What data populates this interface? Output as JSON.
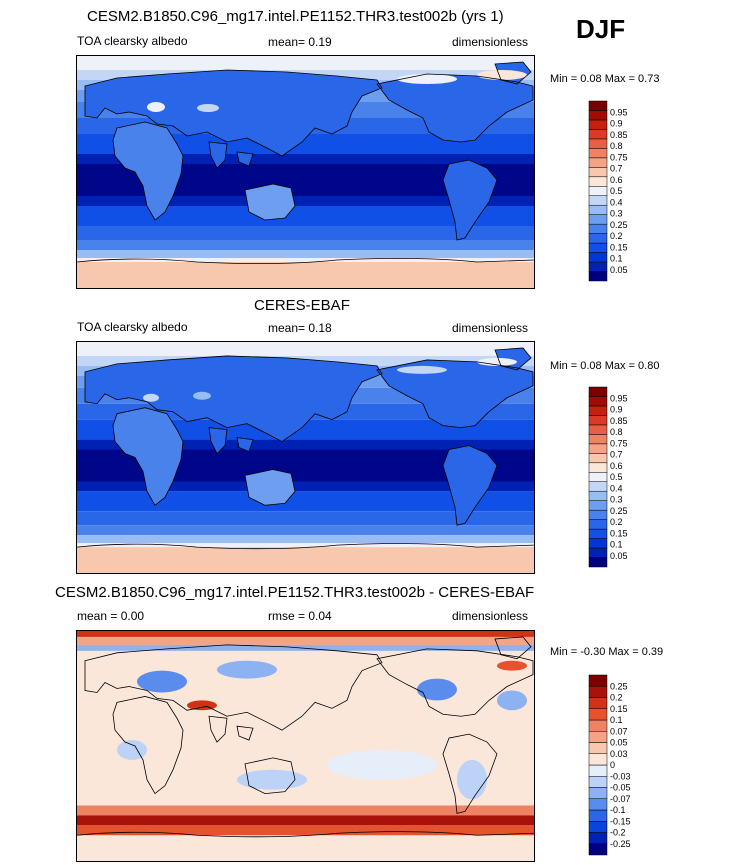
{
  "season": "DJF",
  "colors": {
    "absolute": [
      "#00007f",
      "#0022b4",
      "#0036d2",
      "#1050e6",
      "#2a66e8",
      "#4a82ec",
      "#6e9ef0",
      "#98bcf4",
      "#c3d6f6",
      "#eef1f8",
      "#fbe6da",
      "#f7c8ae",
      "#f2a484",
      "#ee8262",
      "#e86044",
      "#dc3a26",
      "#c4200e",
      "#a00c04",
      "#7a0000"
    ],
    "difference": [
      "#00007f",
      "#0022b4",
      "#0a44dc",
      "#2a66e8",
      "#5a8cee",
      "#8cb2f2",
      "#bcd2f6",
      "#e6eefa",
      "#fbe6da",
      "#f8c8ae",
      "#f2a484",
      "#ee8262",
      "#e6522e",
      "#d03216",
      "#a8120a",
      "#7a0000"
    ]
  },
  "panels": [
    {
      "title": "CESM2.B1850.C96_mg17.intel.PE1152.THR3.test002b (yrs 1)",
      "left_label": "TOA clearsky albedo",
      "center_label": "mean=  0.19",
      "right_label": "dimensionless",
      "minmax": "Min =  0.08 Max =  0.73",
      "kind": "absolute"
    },
    {
      "title": "CERES-EBAF",
      "left_label": "TOA clearsky albedo",
      "center_label": "mean=  0.18",
      "right_label": "dimensionless",
      "minmax": "Min =  0.08 Max =  0.80",
      "kind": "absolute"
    },
    {
      "title": "CESM2.B1850.C96_mg17.intel.PE1152.THR3.test002b - CERES-EBAF",
      "left_label": "mean =  0.00",
      "center_label": "rmse =  0.04",
      "right_label": "dimensionless",
      "minmax": "Min =  -0.30 Max =  0.39",
      "kind": "difference"
    }
  ],
  "chart_data": [
    {
      "type": "heatmap",
      "title": "CESM2.B1850.C96_mg17.intel.PE1152.THR3.test002b (yrs 1)",
      "variable": "TOA clearsky albedo",
      "units": "dimensionless",
      "season": "DJF",
      "mean": 0.19,
      "min": 0.08,
      "max": 0.73,
      "colorbar_levels": [
        "0.05",
        "0.1",
        "0.15",
        "0.2",
        "0.25",
        "0.3",
        "0.4",
        "0.5",
        "0.6",
        "0.7",
        "0.75",
        "0.8",
        "0.85",
        "0.9",
        "0.95"
      ]
    },
    {
      "type": "heatmap",
      "title": "CERES-EBAF",
      "variable": "TOA clearsky albedo",
      "units": "dimensionless",
      "season": "DJF",
      "mean": 0.18,
      "min": 0.08,
      "max": 0.8,
      "colorbar_levels": [
        "0.05",
        "0.1",
        "0.15",
        "0.2",
        "0.25",
        "0.3",
        "0.4",
        "0.5",
        "0.6",
        "0.7",
        "0.75",
        "0.8",
        "0.85",
        "0.9",
        "0.95"
      ]
    },
    {
      "type": "heatmap",
      "title": "CESM2.B1850.C96_mg17.intel.PE1152.THR3.test002b - CERES-EBAF",
      "units": "dimensionless",
      "season": "DJF",
      "mean": 0.0,
      "rmse": 0.04,
      "min": -0.3,
      "max": 0.39,
      "colorbar_levels": [
        "-0.25",
        "-0.2",
        "-0.15",
        "-0.1",
        "-0.07",
        "-0.05",
        "-0.03",
        "0",
        "0.03",
        "0.05",
        "0.07",
        "0.1",
        "0.15",
        "0.2",
        "0.25"
      ]
    }
  ]
}
